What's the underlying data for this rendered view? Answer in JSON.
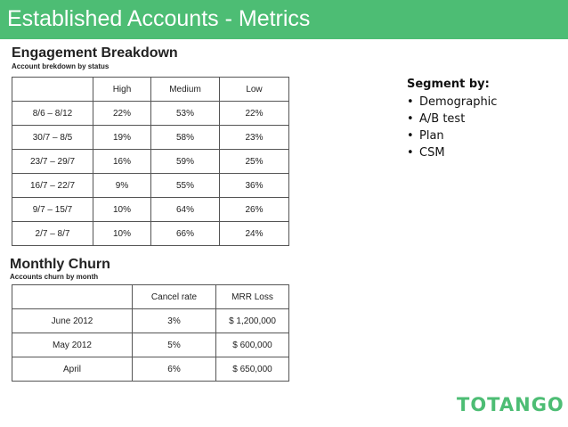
{
  "header": {
    "title": "Established Accounts - Metrics",
    "color": "#4dbd74"
  },
  "engagement": {
    "title": "Engagement Breakdown",
    "subtitle": "Account brekdown by status",
    "columns": [
      "",
      "High",
      "Medium",
      "Low"
    ],
    "rows": [
      [
        "8/6 – 8/12",
        "22%",
        "53%",
        "22%"
      ],
      [
        "30/7 – 8/5",
        "19%",
        "58%",
        "23%"
      ],
      [
        "23/7 – 29/7",
        "16%",
        "59%",
        "25%"
      ],
      [
        "16/7 – 22/7",
        "9%",
        "55%",
        "36%"
      ],
      [
        "9/7 – 15/7",
        "10%",
        "64%",
        "26%"
      ],
      [
        "2/7 – 8/7",
        "10%",
        "66%",
        "24%"
      ]
    ]
  },
  "churn": {
    "title": "Monthly Churn",
    "subtitle": "Accounts churn by month",
    "columns": [
      "",
      "Cancel rate",
      "MRR Loss"
    ],
    "rows": [
      [
        "June 2012",
        "3%",
        "$ 1,200,000"
      ],
      [
        "May 2012",
        "5%",
        "$ 600,000"
      ],
      [
        "April",
        "6%",
        "$ 650,000"
      ]
    ]
  },
  "segment": {
    "title": "Segment by:",
    "bullet": "•",
    "items": [
      "Demographic",
      "A/B test",
      "Plan",
      "CSM"
    ]
  },
  "logo": {
    "text": "TOTANGO",
    "color": "#4dbd74"
  }
}
